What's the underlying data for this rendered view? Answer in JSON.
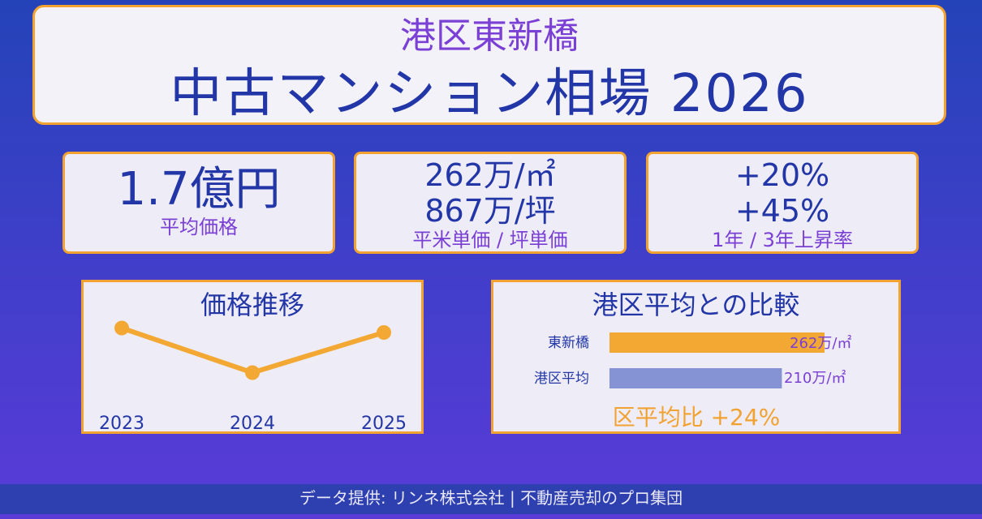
{
  "header": {
    "subtitle": "港区東新橋",
    "title": "中古マンション相場 2026"
  },
  "stats": [
    {
      "lines": [
        "1.7億円"
      ],
      "label": "平均価格"
    },
    {
      "lines": [
        "262万/㎡",
        "867万/坪"
      ],
      "label": "平米単価 / 坪単価"
    },
    {
      "lines": [
        "+20%",
        "+45%"
      ],
      "label": "1年 / 3年上昇率"
    }
  ],
  "trend": {
    "title": "価格推移",
    "chart_data": {
      "type": "line",
      "x": [
        "2023",
        "2024",
        "2025"
      ],
      "relative_values": [
        0.85,
        0.35,
        0.8
      ],
      "color": "#f2a833"
    }
  },
  "comparison": {
    "title": "港区平均との比較",
    "chart_data": {
      "type": "bar",
      "categories": [
        "東新橋",
        "港区平均"
      ],
      "values": [
        262,
        210
      ],
      "value_labels": [
        "262万/㎡",
        "210万/㎡"
      ],
      "colors": [
        "#f2a833",
        "#8593d4"
      ]
    },
    "ratio_text": "区平均比 +24%"
  },
  "footer": {
    "text": "データ提供: リンネ株式会社 | 不動産売却のプロ集団"
  },
  "colors": {
    "accent": "#f2a230",
    "navy": "#2336a8",
    "purple": "#7a3fd4"
  }
}
